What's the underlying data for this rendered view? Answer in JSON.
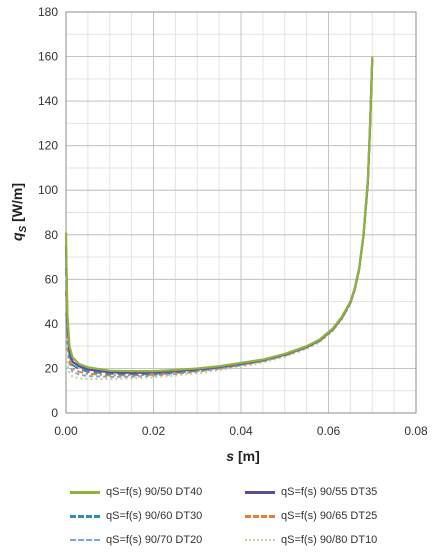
{
  "chart_data": {
    "type": "line",
    "xlabel_italic": "s",
    "xlabel_unit": " [m]",
    "ylabel_sym": "q",
    "ylabel_sub": "S",
    "ylabel_unit": " [W/m]",
    "xlim": [
      0,
      0.08
    ],
    "ylim": [
      0,
      180
    ],
    "x_ticks": [
      "0.00",
      "0.02",
      "0.04",
      "0.06",
      "0.08"
    ],
    "y_ticks": [
      "0",
      "20",
      "40",
      "60",
      "80",
      "100",
      "120",
      "140",
      "160",
      "180"
    ],
    "grid": true,
    "legend_position": "bottom",
    "series": [
      {
        "name": "qS=f(s) 90/50 DT40",
        "color": "#8fb33e",
        "dash": "solid",
        "x": [
          0,
          0.0003,
          0.0008,
          0.0015,
          0.003,
          0.005,
          0.01,
          0.015,
          0.02,
          0.025,
          0.03,
          0.035,
          0.04,
          0.045,
          0.05,
          0.055,
          0.058,
          0.061,
          0.063,
          0.065,
          0.066,
          0.067,
          0.068,
          0.069,
          0.0695,
          0.07
        ],
        "y": [
          81,
          45,
          30,
          25,
          22,
          20.5,
          19,
          18.8,
          18.8,
          19.3,
          20,
          21,
          22.5,
          24,
          26.5,
          30,
          33,
          38,
          43,
          50,
          56,
          65,
          80,
          105,
          130,
          160
        ]
      },
      {
        "name": "qS=f(s) 90/55 DT35",
        "color": "#5b4c97",
        "dash": "solid",
        "x": [
          0,
          0.0003,
          0.0008,
          0.0015,
          0.003,
          0.005,
          0.01,
          0.015,
          0.02,
          0.025,
          0.03,
          0.035,
          0.04,
          0.045,
          0.05,
          0.055,
          0.058,
          0.061,
          0.063,
          0.065,
          0.066,
          0.067,
          0.068,
          0.069,
          0.0695,
          0.07
        ],
        "y": [
          75,
          42,
          28,
          23,
          21,
          19.5,
          18.3,
          18,
          18.2,
          18.8,
          19.6,
          20.7,
          22.2,
          23.8,
          26.3,
          29.8,
          32.8,
          37.8,
          42.8,
          49.8,
          55.8,
          64.8,
          79.8,
          104,
          129,
          159
        ]
      },
      {
        "name": "qS=f(s) 90/60 DT30",
        "color": "#2e8fb5",
        "dash": "8,4",
        "x": [
          0,
          0.0003,
          0.0008,
          0.0015,
          0.003,
          0.005,
          0.01,
          0.015,
          0.02,
          0.025,
          0.03,
          0.035,
          0.04,
          0.045,
          0.05,
          0.055,
          0.058,
          0.061,
          0.063,
          0.065,
          0.066,
          0.067,
          0.068,
          0.069,
          0.0695,
          0.07
        ],
        "y": [
          65,
          38,
          26,
          21.5,
          19.8,
          18.5,
          17.6,
          17.4,
          17.6,
          18.3,
          19.2,
          20.4,
          21.9,
          23.6,
          26.1,
          29.6,
          32.6,
          37.6,
          42.6,
          49.6,
          55.6,
          64.6,
          79.6,
          104,
          129,
          159
        ]
      },
      {
        "name": "qS=f(s) 90/65 DT25",
        "color": "#e87e33",
        "dash": "6,3,2,3",
        "x": [
          0,
          0.0003,
          0.0008,
          0.0015,
          0.003,
          0.005,
          0.01,
          0.015,
          0.02,
          0.025,
          0.03,
          0.035,
          0.04,
          0.045,
          0.05,
          0.055,
          0.058,
          0.061,
          0.063,
          0.065,
          0.066,
          0.067,
          0.068,
          0.069,
          0.0695,
          0.07
        ],
        "y": [
          55,
          34,
          24,
          20,
          18.5,
          17.6,
          16.9,
          16.9,
          17.2,
          17.9,
          18.9,
          20.1,
          21.6,
          23.4,
          25.9,
          29.4,
          32.4,
          37.4,
          42.4,
          49.4,
          55.4,
          64.4,
          79.4,
          103,
          128,
          158
        ]
      },
      {
        "name": "qS=f(s) 90/70 DT20",
        "color": "#7ea6d8",
        "dash": "4,3",
        "x": [
          0,
          0.0003,
          0.0008,
          0.0015,
          0.003,
          0.005,
          0.01,
          0.015,
          0.02,
          0.025,
          0.03,
          0.035,
          0.04,
          0.045,
          0.05,
          0.055,
          0.058,
          0.061,
          0.063,
          0.065,
          0.066,
          0.067,
          0.068,
          0.069,
          0.0695,
          0.07
        ],
        "y": [
          45,
          30,
          22,
          18.5,
          17.3,
          16.6,
          16.2,
          16.3,
          16.8,
          17.5,
          18.6,
          19.8,
          21.4,
          23.2,
          25.7,
          29.2,
          32.2,
          37.2,
          42.2,
          49.2,
          55.2,
          64.2,
          79.2,
          103,
          128,
          158
        ]
      },
      {
        "name": "qS=f(s) 90/80 DT10",
        "color": "#c9cf9b",
        "dash": "2,3",
        "x": [
          0,
          0.0003,
          0.0008,
          0.0015,
          0.003,
          0.005,
          0.01,
          0.015,
          0.02,
          0.025,
          0.03,
          0.035,
          0.04,
          0.045,
          0.05,
          0.055,
          0.058,
          0.061,
          0.063,
          0.065,
          0.066,
          0.067,
          0.068,
          0.069,
          0.0695,
          0.07
        ],
        "y": [
          30,
          22,
          18,
          16.3,
          15.6,
          15.3,
          15.2,
          15.5,
          16,
          16.8,
          17.9,
          19.2,
          20.8,
          22.7,
          25.2,
          28.8,
          31.8,
          36.8,
          41.8,
          48.8,
          54.8,
          63.8,
          78.8,
          102,
          127,
          157
        ]
      }
    ]
  }
}
